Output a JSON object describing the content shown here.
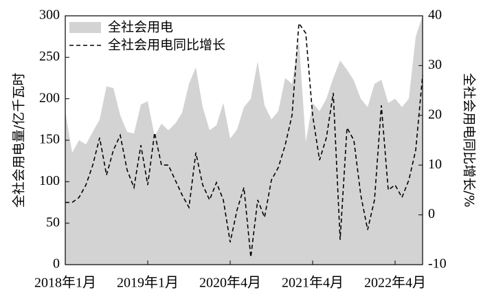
{
  "chart_data": {
    "type": "area-line",
    "categories": [
      "2018年1月",
      null,
      null,
      null,
      null,
      null,
      null,
      null,
      null,
      null,
      null,
      null,
      "2019年1月",
      null,
      null,
      null,
      null,
      null,
      null,
      null,
      null,
      null,
      null,
      null,
      "2020年4月",
      null,
      null,
      null,
      null,
      null,
      null,
      null,
      null,
      null,
      null,
      null,
      "2021年4月",
      null,
      null,
      null,
      null,
      null,
      null,
      null,
      null,
      null,
      null,
      null,
      "2022年4月",
      null,
      null,
      null,
      null
    ],
    "series": [
      {
        "name": "全社会用电",
        "type": "area",
        "color": "#d3d3d3",
        "values": [
          185,
          135,
          150,
          145,
          160,
          175,
          215,
          213,
          180,
          160,
          158,
          193,
          197,
          155,
          170,
          162,
          170,
          183,
          218,
          238,
          190,
          162,
          168,
          195,
          152,
          163,
          190,
          200,
          245,
          192,
          175,
          185,
          225,
          218,
          270,
          148,
          195,
          185,
          200,
          225,
          246,
          235,
          222,
          200,
          190,
          218,
          223,
          195,
          200,
          190,
          200,
          275,
          300
        ]
      },
      {
        "name": "全社会用电同比增长",
        "type": "line",
        "axis": "y2",
        "color": "#000000",
        "dashed": true,
        "values": [
          2.5,
          2.5,
          3.5,
          6,
          10,
          15.5,
          8,
          13,
          16,
          9,
          5.5,
          14,
          6,
          16.5,
          10,
          10,
          7,
          4,
          1.5,
          12.5,
          6,
          3,
          6.5,
          3,
          -5.5,
          1,
          5.5,
          -8.5,
          3,
          -0.5,
          7,
          9.5,
          14,
          20,
          38.5,
          36.5,
          20,
          11,
          15.5,
          24.5,
          -5,
          17.5,
          15,
          4,
          -3,
          3,
          22,
          5,
          6,
          3.5,
          7,
          13,
          28
        ]
      }
    ],
    "y_label": "全社会用电量/亿千瓦时",
    "y2_label": "全社会用电同比增长/%",
    "ylim": [
      0,
      300
    ],
    "yticks": [
      0,
      50,
      100,
      150,
      200,
      250,
      300
    ],
    "y2lim": [
      -10,
      40
    ],
    "y2ticks": [
      -10,
      0,
      10,
      20,
      30,
      40
    ],
    "legend": "top-left"
  }
}
